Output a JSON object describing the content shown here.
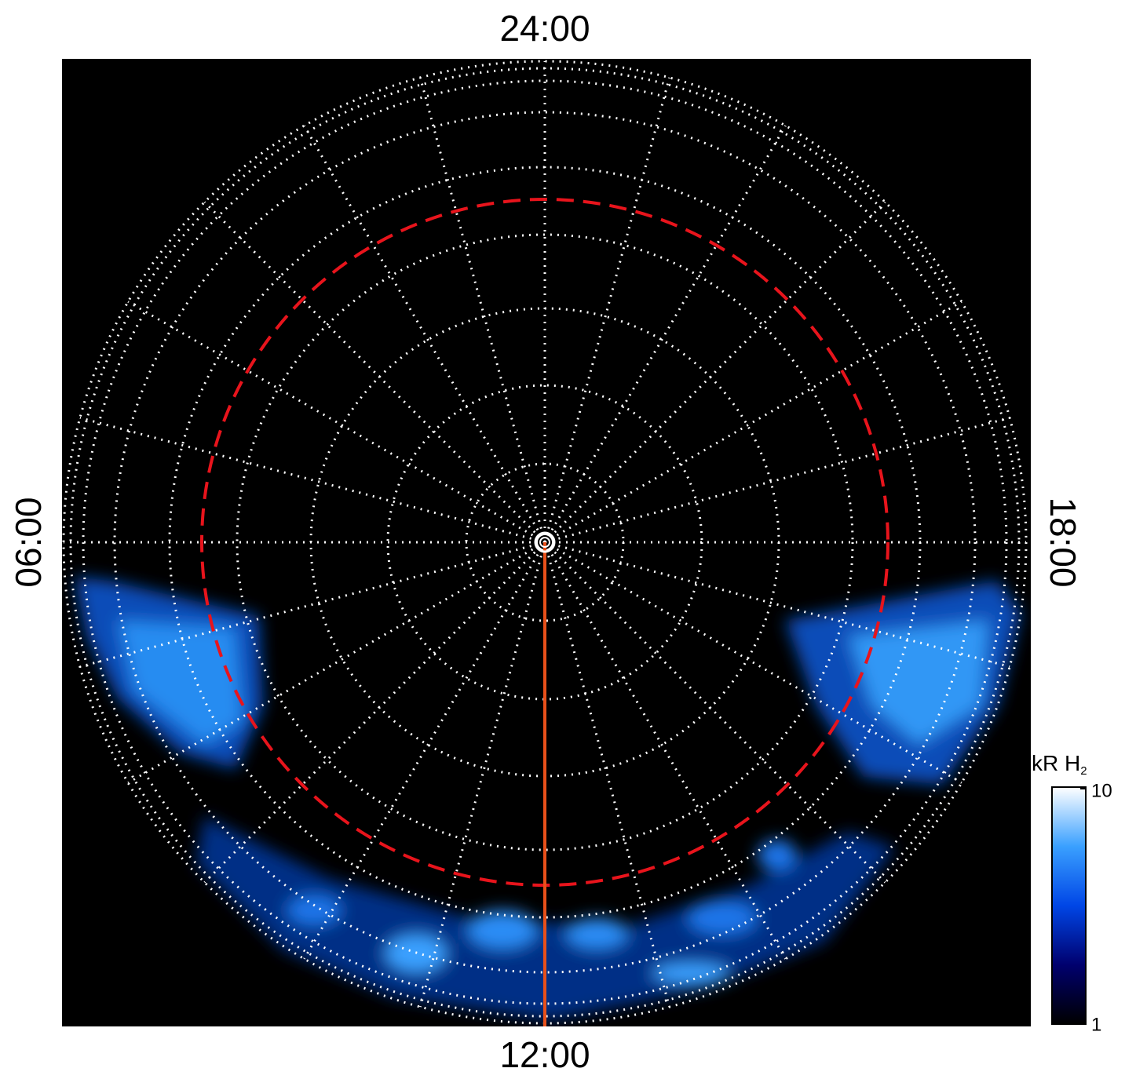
{
  "chart_data": {
    "type": "polar",
    "labels": {
      "top": "24:00",
      "left": "06:00",
      "right": "18:00",
      "bottom": "12:00"
    },
    "colorbar": {
      "title": "kR H",
      "title_sub": "2",
      "lim": [
        1,
        10
      ],
      "ticks": [
        1,
        10
      ],
      "log": true,
      "colors": [
        "#000000",
        "#00006e",
        "#0046e6",
        "#3aa0ff",
        "#ffffff"
      ]
    }
  }
}
